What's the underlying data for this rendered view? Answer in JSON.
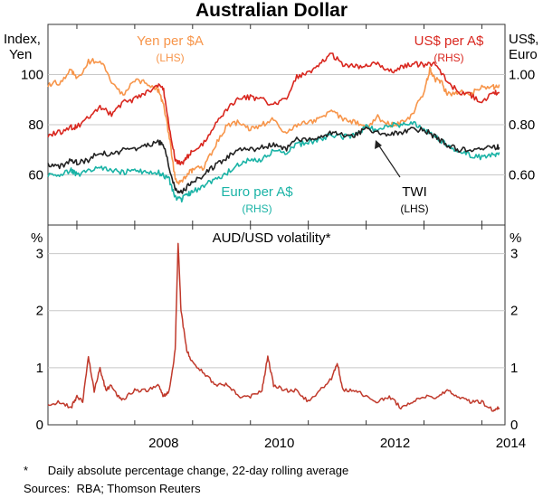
{
  "chart": {
    "title": "Australian Dollar",
    "top_panel": {
      "left_axis_label_line1": "Index,",
      "left_axis_label_line2": "Yen",
      "right_axis_label_line1": "US$,",
      "right_axis_label_line2": "Euro",
      "left_ticks": [
        "100",
        "80",
        "60"
      ],
      "right_ticks": [
        "1.00",
        "0.80",
        "0.60"
      ]
    },
    "bottom_panel": {
      "title": "AUD/USD volatility*",
      "left_axis_label": "%",
      "right_axis_label": "%",
      "left_ticks": [
        "3",
        "2",
        "1",
        "0"
      ],
      "right_ticks": [
        "3",
        "2",
        "1",
        "0"
      ]
    },
    "x_ticks": [
      "2008",
      "2010",
      "2012",
      "2014"
    ],
    "legend": {
      "yen": {
        "name": "Yen per $A",
        "side": "(LHS)"
      },
      "usd": {
        "name": "US$ per A$",
        "side": "(RHS)"
      },
      "euro": {
        "name": "Euro per A$",
        "side": "(RHS)"
      },
      "twi": {
        "name": "TWI",
        "side": "(LHS)"
      }
    }
  },
  "footnote": "*      Daily absolute percentage change, 22-day rolling average",
  "sources": "Sources:  RBA; Thomson Reuters",
  "colors": {
    "yen": "#f7954a",
    "usd": "#d9271f",
    "euro": "#1ab3a6",
    "twi": "#222222",
    "volatility": "#c0392b",
    "frame": "#333333",
    "grid": "#c8c8c8"
  },
  "chart_data": [
    {
      "type": "line",
      "title": "Australian Dollar",
      "ylabel_left": "Index, Yen",
      "ylabel_right": "US$, Euro",
      "ylim_left": [
        40,
        120
      ],
      "ylim_right": [
        0.4,
        1.2
      ],
      "grid": true,
      "series": [
        {
          "name": "Yen per $A",
          "axis": "left",
          "x": [
            2006.5,
            2006.7,
            2006.9,
            2007.0,
            2007.2,
            2007.4,
            2007.6,
            2007.8,
            2008.0,
            2008.2,
            2008.4,
            2008.5,
            2008.6,
            2008.7,
            2008.8,
            2008.9,
            2009.0,
            2009.2,
            2009.4,
            2009.6,
            2009.8,
            2010.0,
            2010.2,
            2010.4,
            2010.6,
            2010.8,
            2011.0,
            2011.2,
            2011.4,
            2011.6,
            2011.8,
            2012.0,
            2012.2,
            2012.4,
            2012.6,
            2012.8,
            2013.0,
            2013.1,
            2013.2,
            2013.3,
            2013.4,
            2013.6,
            2013.8,
            2014.0,
            2014.2,
            2014.3
          ],
          "y": [
            96,
            97,
            102,
            98,
            105,
            106,
            97,
            92,
            98,
            97,
            94,
            88,
            75,
            58,
            57,
            60,
            62,
            63,
            72,
            80,
            81,
            78,
            80,
            82,
            77,
            80,
            81,
            82,
            86,
            82,
            81,
            79,
            83,
            80,
            81,
            84,
            93,
            102,
            98,
            97,
            92,
            93,
            92,
            95,
            95,
            96
          ]
        },
        {
          "name": "US$ per A$",
          "axis": "right",
          "x": [
            2006.5,
            2006.7,
            2006.9,
            2007.0,
            2007.2,
            2007.4,
            2007.6,
            2007.8,
            2008.0,
            2008.2,
            2008.4,
            2008.5,
            2008.6,
            2008.7,
            2008.8,
            2008.9,
            2009.0,
            2009.2,
            2009.4,
            2009.6,
            2009.8,
            2010.0,
            2010.2,
            2010.4,
            2010.6,
            2010.8,
            2011.0,
            2011.2,
            2011.4,
            2011.6,
            2011.8,
            2012.0,
            2012.2,
            2012.4,
            2012.6,
            2012.8,
            2013.0,
            2013.2,
            2013.4,
            2013.6,
            2013.8,
            2014.0,
            2014.2,
            2014.3
          ],
          "y": [
            0.76,
            0.77,
            0.79,
            0.79,
            0.83,
            0.87,
            0.84,
            0.89,
            0.9,
            0.93,
            0.96,
            0.94,
            0.79,
            0.66,
            0.64,
            0.67,
            0.7,
            0.73,
            0.8,
            0.86,
            0.91,
            0.91,
            0.9,
            0.88,
            0.9,
            0.99,
            1.01,
            1.04,
            1.08,
            1.04,
            1.03,
            1.04,
            1.04,
            1.01,
            1.03,
            1.04,
            1.04,
            1.04,
            0.97,
            0.93,
            0.92,
            0.89,
            0.93,
            0.93
          ]
        },
        {
          "name": "Euro per A$",
          "axis": "right",
          "x": [
            2006.5,
            2006.7,
            2006.9,
            2007.0,
            2007.2,
            2007.4,
            2007.6,
            2007.8,
            2008.0,
            2008.2,
            2008.4,
            2008.5,
            2008.6,
            2008.7,
            2008.8,
            2008.9,
            2009.0,
            2009.2,
            2009.4,
            2009.6,
            2009.8,
            2010.0,
            2010.2,
            2010.4,
            2010.6,
            2010.8,
            2011.0,
            2011.2,
            2011.4,
            2011.6,
            2011.8,
            2012.0,
            2012.2,
            2012.4,
            2012.6,
            2012.8,
            2013.0,
            2013.2,
            2013.4,
            2013.6,
            2013.8,
            2014.0,
            2014.2,
            2014.3
          ],
          "y": [
            0.6,
            0.6,
            0.62,
            0.6,
            0.62,
            0.63,
            0.62,
            0.61,
            0.62,
            0.61,
            0.61,
            0.6,
            0.58,
            0.51,
            0.5,
            0.52,
            0.53,
            0.56,
            0.58,
            0.61,
            0.64,
            0.66,
            0.66,
            0.7,
            0.69,
            0.72,
            0.73,
            0.74,
            0.76,
            0.75,
            0.76,
            0.79,
            0.78,
            0.8,
            0.8,
            0.81,
            0.78,
            0.75,
            0.72,
            0.69,
            0.68,
            0.67,
            0.68,
            0.69
          ]
        },
        {
          "name": "TWI",
          "axis": "left",
          "x": [
            2006.5,
            2006.7,
            2006.9,
            2007.0,
            2007.2,
            2007.4,
            2007.6,
            2007.8,
            2008.0,
            2008.2,
            2008.4,
            2008.5,
            2008.6,
            2008.7,
            2008.8,
            2008.9,
            2009.0,
            2009.2,
            2009.4,
            2009.6,
            2009.8,
            2010.0,
            2010.2,
            2010.4,
            2010.6,
            2010.8,
            2011.0,
            2011.2,
            2011.4,
            2011.6,
            2011.8,
            2012.0,
            2012.2,
            2012.4,
            2012.6,
            2012.8,
            2013.0,
            2013.2,
            2013.4,
            2013.6,
            2013.8,
            2014.0,
            2014.2,
            2014.3
          ],
          "y": [
            64,
            63,
            66,
            65,
            66,
            69,
            68,
            70,
            70,
            72,
            73,
            72,
            63,
            54,
            53,
            55,
            57,
            60,
            64,
            67,
            70,
            70,
            71,
            72,
            70,
            74,
            74,
            75,
            77,
            76,
            76,
            78,
            77,
            76,
            77,
            78,
            78,
            75,
            72,
            70,
            70,
            70,
            71,
            71
          ]
        }
      ]
    },
    {
      "type": "line",
      "title": "AUD/USD volatility*",
      "ylabel_left": "%",
      "ylabel_right": "%",
      "ylim": [
        0,
        3.5
      ],
      "grid": true,
      "series": [
        {
          "name": "AUD/USD volatility",
          "x": [
            2006.5,
            2006.7,
            2006.9,
            2007.0,
            2007.1,
            2007.2,
            2007.3,
            2007.4,
            2007.5,
            2007.6,
            2007.7,
            2007.8,
            2008.0,
            2008.2,
            2008.4,
            2008.5,
            2008.6,
            2008.7,
            2008.75,
            2008.8,
            2008.9,
            2009.0,
            2009.2,
            2009.4,
            2009.6,
            2009.8,
            2010.0,
            2010.2,
            2010.3,
            2010.4,
            2010.6,
            2010.8,
            2011.0,
            2011.2,
            2011.4,
            2011.5,
            2011.6,
            2011.8,
            2012.0,
            2012.2,
            2012.4,
            2012.6,
            2012.8,
            2013.0,
            2013.2,
            2013.4,
            2013.6,
            2013.8,
            2014.0,
            2014.2,
            2014.3
          ],
          "y": [
            0.35,
            0.4,
            0.3,
            0.5,
            0.4,
            1.2,
            0.6,
            1.0,
            0.6,
            0.7,
            0.5,
            0.45,
            0.6,
            0.6,
            0.7,
            0.5,
            0.6,
            1.3,
            3.2,
            2.0,
            1.3,
            1.1,
            0.9,
            0.7,
            0.7,
            0.5,
            0.5,
            0.6,
            1.2,
            0.7,
            0.6,
            0.6,
            0.4,
            0.6,
            0.8,
            1.1,
            0.6,
            0.6,
            0.5,
            0.4,
            0.5,
            0.3,
            0.4,
            0.5,
            0.45,
            0.6,
            0.5,
            0.4,
            0.4,
            0.25,
            0.3
          ]
        }
      ]
    }
  ]
}
